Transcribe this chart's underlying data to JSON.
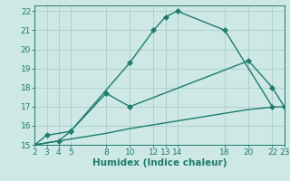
{
  "xlabel": "Humidex (Indice chaleur)",
  "bg_color": "#cde8e5",
  "grid_color": "#aacfcc",
  "line_color": "#1e7b6e",
  "xlim": [
    2,
    23
  ],
  "ylim": [
    15,
    22.3
  ],
  "xticks": [
    2,
    3,
    4,
    5,
    8,
    10,
    12,
    13,
    14,
    18,
    20,
    22,
    23
  ],
  "yticks": [
    15,
    16,
    17,
    18,
    19,
    20,
    21,
    22
  ],
  "line1_x": [
    2,
    3,
    5,
    10,
    12,
    13,
    14,
    18,
    22
  ],
  "line1_y": [
    15.0,
    15.5,
    15.7,
    19.3,
    21.0,
    21.7,
    22.0,
    21.0,
    17.0
  ],
  "line2_x": [
    2,
    4,
    5,
    8,
    10,
    20,
    22,
    23
  ],
  "line2_y": [
    15.0,
    15.2,
    15.7,
    17.7,
    17.0,
    19.4,
    18.0,
    17.0
  ],
  "line3_x": [
    2,
    5,
    8,
    10,
    12,
    13,
    14,
    18,
    20,
    22,
    23
  ],
  "line3_y": [
    15.0,
    15.3,
    15.6,
    15.85,
    16.05,
    16.15,
    16.25,
    16.65,
    16.85,
    16.97,
    17.0
  ],
  "marker_size": 3,
  "line_width": 1.0,
  "tick_fontsize": 6.5,
  "xlabel_fontsize": 7.5
}
